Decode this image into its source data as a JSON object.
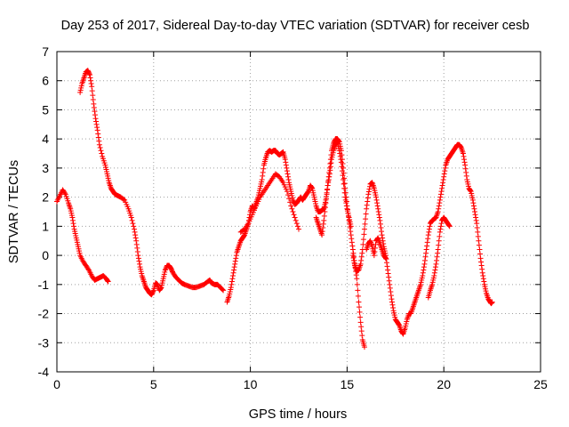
{
  "chart_data": {
    "type": "scatter",
    "title": "Day 253 of 2017, Sidereal Day-to-day VTEC variation (SDTVAR) for receiver cesb",
    "xlabel": "GPS time / hours",
    "ylabel": "SDTVAR / TECUs",
    "xlim": [
      0,
      25
    ],
    "ylim": [
      -4,
      7
    ],
    "xticks": [
      "0",
      "5",
      "10",
      "15",
      "20",
      "25"
    ],
    "yticks": [
      "-4",
      "-3",
      "-2",
      "-1",
      "0",
      "1",
      "2",
      "3",
      "4",
      "5",
      "6",
      "7"
    ],
    "grid": true,
    "marker": "plus",
    "color": "#ff0000",
    "series": [
      {
        "name": "seg1",
        "x": [
          0.0,
          0.15,
          0.3,
          0.45,
          0.6,
          0.7,
          0.8,
          0.9,
          1.0,
          1.1,
          1.2,
          1.35,
          1.5,
          1.65,
          1.8,
          1.95,
          2.1,
          2.25,
          2.4,
          2.55,
          2.65
        ],
        "y": [
          1.85,
          2.05,
          2.25,
          2.1,
          1.8,
          1.6,
          1.3,
          0.9,
          0.6,
          0.3,
          0.0,
          -0.2,
          -0.35,
          -0.5,
          -0.7,
          -0.85,
          -0.8,
          -0.75,
          -0.7,
          -0.8,
          -0.9
        ]
      },
      {
        "name": "seg2",
        "x": [
          1.2,
          1.3,
          1.4,
          1.5,
          1.6,
          1.7,
          1.8,
          1.9,
          2.0,
          2.1,
          2.2,
          2.35,
          2.5,
          2.6,
          2.7,
          2.8,
          2.9,
          3.0,
          3.15,
          3.3,
          3.5,
          3.7,
          3.85,
          4.0,
          4.1,
          4.2,
          4.3,
          4.4,
          4.5,
          4.6,
          4.7,
          4.8,
          4.9,
          5.0,
          5.1,
          5.2,
          5.3,
          5.4,
          5.5,
          5.6,
          5.7,
          5.8,
          5.9,
          6.0,
          6.15,
          6.3,
          6.45,
          6.6,
          6.8,
          7.0,
          7.2,
          7.4,
          7.6,
          7.8,
          7.9,
          8.0,
          8.15,
          8.3,
          8.45,
          8.6
        ],
        "y": [
          5.6,
          5.9,
          6.1,
          6.3,
          6.35,
          6.2,
          5.8,
          5.2,
          4.7,
          4.3,
          3.8,
          3.4,
          3.1,
          2.8,
          2.5,
          2.3,
          2.2,
          2.1,
          2.05,
          2.0,
          1.9,
          1.6,
          1.3,
          0.9,
          0.5,
          0.0,
          -0.4,
          -0.7,
          -0.9,
          -1.1,
          -1.2,
          -1.3,
          -1.35,
          -1.2,
          -0.95,
          -1.0,
          -1.2,
          -1.1,
          -0.8,
          -0.5,
          -0.35,
          -0.35,
          -0.45,
          -0.6,
          -0.75,
          -0.85,
          -0.95,
          -1.0,
          -1.05,
          -1.1,
          -1.1,
          -1.05,
          -1.0,
          -0.9,
          -0.85,
          -0.95,
          -1.0,
          -1.0,
          -1.1,
          -1.2
        ]
      },
      {
        "name": "seg3",
        "x": [
          8.8,
          8.9,
          9.0,
          9.1,
          9.2,
          9.3,
          9.4,
          9.5,
          9.6,
          9.7,
          9.8,
          9.9,
          10.0,
          10.1,
          10.2,
          10.3,
          10.4,
          10.5,
          10.6,
          10.7,
          10.8,
          10.9,
          11.0,
          11.1,
          11.2,
          11.3,
          11.4,
          11.5,
          11.6,
          11.7,
          11.8,
          11.9,
          12.0,
          12.1,
          12.2,
          12.3,
          12.4,
          12.5,
          12.6,
          12.7,
          12.8,
          12.9,
          13.0,
          13.1,
          13.2,
          13.3,
          13.4,
          13.5,
          13.6,
          13.7,
          13.8,
          13.9,
          14.0,
          14.1,
          14.2,
          14.3,
          14.4,
          14.5,
          14.6,
          14.7,
          14.8,
          14.9,
          15.0,
          15.1,
          15.2,
          15.3,
          15.4,
          15.5,
          15.6,
          15.7,
          15.8,
          15.9
        ],
        "y": [
          -1.6,
          -1.4,
          -1.1,
          -0.7,
          -0.3,
          0.1,
          0.3,
          0.5,
          0.6,
          0.7,
          0.9,
          1.1,
          1.5,
          1.7,
          1.6,
          1.8,
          2.0,
          2.3,
          2.6,
          3.1,
          3.35,
          3.55,
          3.6,
          3.55,
          3.6,
          3.6,
          3.5,
          3.45,
          3.5,
          3.55,
          3.3,
          2.9,
          2.5,
          2.2,
          1.9,
          1.75,
          1.8,
          1.9,
          2.0,
          1.9,
          2.0,
          2.1,
          2.2,
          2.4,
          2.3,
          2.0,
          1.7,
          1.5,
          1.5,
          1.55,
          1.6,
          1.9,
          2.4,
          3.0,
          3.6,
          3.85,
          4.0,
          4.0,
          3.9,
          3.6,
          3.0,
          2.3,
          1.7,
          1.2,
          0.7,
          0.2,
          -0.3,
          -0.8,
          -1.6,
          -2.3,
          -2.9,
          -3.15
        ]
      },
      {
        "name": "seg4",
        "x": [
          9.5,
          9.7,
          9.9,
          10.1,
          10.3,
          10.5,
          10.7,
          10.9,
          11.1,
          11.3,
          11.5,
          11.7,
          11.9,
          12.1,
          12.3,
          12.5
        ],
        "y": [
          0.8,
          0.9,
          1.1,
          1.4,
          1.7,
          2.0,
          2.2,
          2.4,
          2.6,
          2.8,
          2.7,
          2.5,
          2.2,
          1.7,
          1.3,
          0.9
        ]
      },
      {
        "name": "seg5",
        "x": [
          13.4,
          13.5,
          13.6,
          13.7,
          13.8,
          13.9,
          14.0,
          14.1,
          14.2,
          14.3,
          14.4,
          14.5,
          14.6,
          14.7,
          14.8,
          14.9,
          15.0,
          15.1,
          15.2
        ],
        "y": [
          1.3,
          1.1,
          0.9,
          0.7,
          1.2,
          1.8,
          2.4,
          2.8,
          3.3,
          3.6,
          3.8,
          3.9,
          3.6,
          3.2,
          2.6,
          2.0,
          1.6,
          1.3,
          1.0
        ]
      },
      {
        "name": "seg6",
        "x": [
          15.3,
          15.4,
          15.5,
          15.6,
          15.7,
          15.8,
          15.9,
          16.0,
          16.1,
          16.2,
          16.3,
          16.4,
          16.5,
          16.6,
          16.7,
          16.8,
          16.9,
          17.0,
          17.1,
          17.2,
          17.3,
          17.4,
          17.5,
          17.6,
          17.7,
          17.8,
          17.9,
          18.0,
          18.1,
          18.2,
          18.3,
          18.4,
          18.5,
          18.6,
          18.7,
          18.8,
          18.9,
          19.0,
          19.1,
          19.2,
          19.3,
          19.4,
          19.5,
          19.6,
          19.7,
          19.8,
          19.9,
          20.0,
          20.1,
          20.2,
          20.3,
          20.4,
          20.5,
          20.6,
          20.7,
          20.8,
          20.9,
          21.0,
          21.1,
          21.2,
          21.3,
          21.4,
          21.5,
          21.6,
          21.7,
          21.8,
          21.9,
          22.0,
          22.1,
          22.2,
          22.3,
          22.4,
          22.45,
          22.5
        ],
        "y": [
          0.0,
          -0.35,
          -0.55,
          -0.5,
          -0.3,
          0.2,
          0.9,
          1.6,
          2.1,
          2.45,
          2.5,
          2.3,
          2.0,
          1.6,
          1.2,
          0.7,
          0.3,
          0.0,
          -0.5,
          -1.0,
          -1.5,
          -1.9,
          -2.2,
          -2.3,
          -2.4,
          -2.6,
          -2.7,
          -2.5,
          -2.2,
          -2.0,
          -2.0,
          -1.8,
          -1.6,
          -1.4,
          -1.2,
          -1.0,
          -0.7,
          -0.3,
          0.2,
          0.7,
          1.1,
          1.2,
          1.25,
          1.3,
          1.5,
          1.9,
          2.3,
          2.7,
          3.1,
          3.3,
          3.4,
          3.5,
          3.6,
          3.7,
          3.8,
          3.8,
          3.7,
          3.5,
          3.1,
          2.6,
          2.3,
          2.2,
          1.9,
          1.5,
          1.1,
          0.5,
          -0.1,
          -0.6,
          -1.0,
          -1.3,
          -1.5,
          -1.6,
          -1.65,
          -1.6
        ]
      },
      {
        "name": "seg7",
        "x": [
          16.0,
          16.1,
          16.2,
          16.3,
          16.4,
          16.5,
          16.6,
          16.7,
          16.8,
          16.9,
          17.0
        ],
        "y": [
          0.2,
          0.4,
          0.5,
          0.3,
          0.0,
          0.5,
          0.6,
          0.4,
          0.2,
          0.0,
          -0.1
        ]
      },
      {
        "name": "seg8",
        "x": [
          19.2,
          19.3,
          19.4,
          19.5,
          19.6,
          19.7,
          19.8,
          19.9,
          20.0,
          20.1,
          20.2,
          20.3
        ],
        "y": [
          -1.45,
          -1.2,
          -1.0,
          -0.7,
          -0.3,
          0.2,
          0.8,
          1.2,
          1.3,
          1.2,
          1.1,
          1.0
        ]
      }
    ]
  }
}
